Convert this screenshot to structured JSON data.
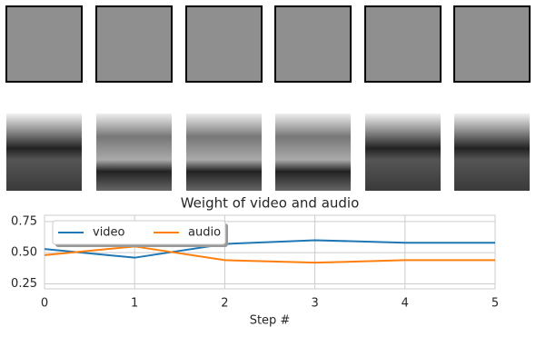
{
  "chart_data": {
    "type": "line",
    "title": "Weight of video and audio",
    "x_label": "Step #",
    "x": [
      0,
      1,
      2,
      3,
      4,
      5
    ],
    "xlim": [
      0,
      5
    ],
    "xticks": [
      0,
      1,
      2,
      3,
      4,
      5
    ],
    "ylim": [
      0.21,
      0.8
    ],
    "yticks": [
      {
        "value": 0.25,
        "label": "0.25"
      },
      {
        "value": 0.5,
        "label": "0.50"
      },
      {
        "value": 0.75,
        "label": "0.75"
      }
    ],
    "grid": true,
    "legend": "upper left",
    "series": [
      {
        "name": "video",
        "color": "#1f77b4",
        "values": [
          0.53,
          0.46,
          0.57,
          0.6,
          0.58,
          0.58
        ]
      },
      {
        "name": "audio",
        "color": "#ff7f0e",
        "values": [
          0.48,
          0.55,
          0.44,
          0.42,
          0.44,
          0.44
        ]
      }
    ]
  }
}
